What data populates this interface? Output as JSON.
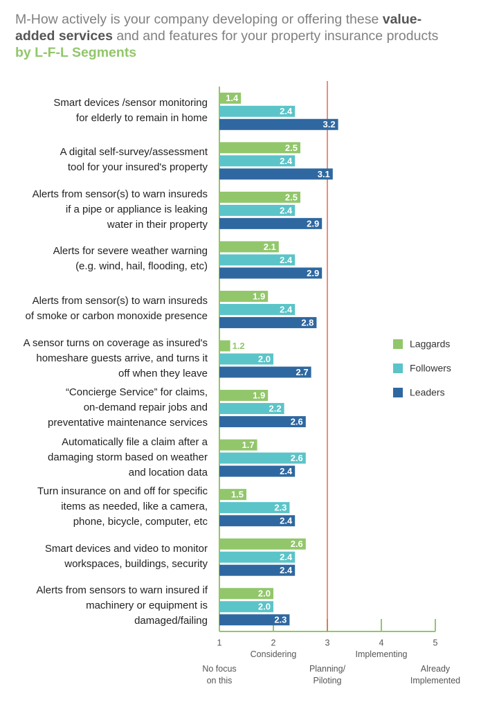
{
  "chart_data": {
    "type": "bar",
    "orientation": "horizontal",
    "title_parts": [
      "M-How actively is your company developing or offering these",
      "value-added services",
      "and and features for your property insurance products",
      "by L-F-L Segments"
    ],
    "categories": [
      "Smart devices /sensor monitoring\nfor elderly to remain in home",
      "A digital self-survey/assessment\ntool for your insured's property",
      "Alerts from sensor(s) to warn insureds\nif a pipe or appliance is leaking\nwater in their property",
      "Alerts for severe weather warning\n(e.g. wind, hail, flooding, etc)",
      "Alerts from sensor(s) to warn insureds\nof smoke or carbon monoxide presence",
      "A sensor turns on coverage as insured's\nhomeshare guests arrive, and turns it\noff when they leave",
      "“Concierge Service” for claims,\non-demand repair jobs and\npreventative maintenance services",
      "Automatically file a claim after a\ndamaging storm based on weather\nand location data",
      "Turn insurance on and off for specific\nitems as needed, like a camera,\nphone, bicycle, computer, etc",
      "Smart devices and video to monitor\nworkspaces, buildings, security",
      "Alerts from sensors to warn insured if\nmachinery or equipment is\ndamaged/failing"
    ],
    "series": [
      {
        "name": "Laggards",
        "color": "#92c66b",
        "values": [
          1.4,
          2.5,
          2.5,
          2.1,
          1.9,
          1.2,
          1.9,
          1.7,
          1.5,
          2.6,
          2.0
        ],
        "value_labels": [
          "1.4",
          "2.5",
          "2.5",
          "2.1",
          "1.9",
          "1.2",
          "1.9",
          "1.7",
          "1.5",
          "2.6",
          "2.0"
        ]
      },
      {
        "name": "Followers",
        "color": "#5bc4c8",
        "values": [
          2.4,
          2.4,
          2.4,
          2.4,
          2.4,
          2.0,
          2.2,
          2.6,
          2.3,
          2.4,
          2.0
        ],
        "value_labels": [
          "2.4",
          "2.4",
          "2.4",
          "2.4",
          "2.4",
          "2.0",
          "2.2",
          "2.6",
          "2.3",
          "2.4",
          "2.0"
        ]
      },
      {
        "name": "Leaders",
        "color": "#2f68a0",
        "values": [
          3.2,
          3.1,
          2.9,
          2.9,
          2.8,
          2.7,
          2.6,
          2.4,
          2.4,
          2.4,
          2.3
        ],
        "value_labels": [
          "3.2",
          "3.1",
          "2.9",
          "2.9",
          "2.8",
          "2.7",
          "2.6",
          "2.4",
          "2.4",
          "2.4",
          "2.3"
        ]
      }
    ],
    "xlim": [
      1,
      5
    ],
    "xticks": [
      1,
      2,
      3,
      4,
      5
    ],
    "scale_labels": [
      "No focus\non this",
      "Considering",
      "Planning/\nPiloting",
      "Implementing",
      "Already\nImplemented"
    ],
    "reference_line": 3,
    "reference_color": "#e8684a",
    "axis_color": "#92c66b",
    "legend": "right"
  }
}
